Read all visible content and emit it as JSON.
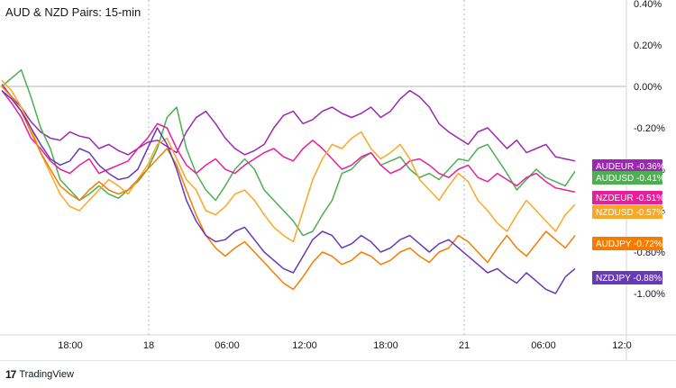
{
  "title": "AUD & NZD Pairs: 15-min",
  "brand": {
    "name": "TradingView",
    "logo_text": "17"
  },
  "chart_data": {
    "type": "line",
    "title": "AUD & NZD Pairs: 15-min",
    "xlabel": "",
    "ylabel": "",
    "ylim": [
      -1.2,
      0.4
    ],
    "grid": true,
    "x_ticks": [
      "18:00",
      "18",
      "06:00",
      "12:00",
      "18:00",
      "21",
      "06:00",
      "12:0"
    ],
    "y_ticks": [
      "0.40%",
      "0.20%",
      "0.00%",
      "-0.20%",
      "-0.40%",
      "-0.60%",
      "-0.80%",
      "-1.00%"
    ],
    "legend_position": "right",
    "series": [
      {
        "name": "AUDEUR",
        "value_label": "-0.36%",
        "color": "#9c27b0",
        "last": -0.36,
        "values": [
          0.01,
          -0.05,
          -0.1,
          -0.17,
          -0.22,
          -0.25,
          -0.26,
          -0.22,
          -0.24,
          -0.25,
          -0.3,
          -0.28,
          -0.31,
          -0.33,
          -0.3,
          -0.27,
          -0.26,
          -0.29,
          -0.32,
          -0.22,
          -0.15,
          -0.12,
          -0.18,
          -0.25,
          -0.3,
          -0.33,
          -0.31,
          -0.28,
          -0.2,
          -0.14,
          -0.12,
          -0.18,
          -0.16,
          -0.12,
          -0.1,
          -0.13,
          -0.15,
          -0.13,
          -0.1,
          -0.15,
          -0.12,
          -0.06,
          -0.02,
          -0.05,
          -0.1,
          -0.18,
          -0.22,
          -0.25,
          -0.28,
          -0.22,
          -0.2,
          -0.25,
          -0.3,
          -0.26,
          -0.32,
          -0.3,
          -0.28,
          -0.34,
          -0.35,
          -0.36
        ]
      },
      {
        "name": "AUDUSD",
        "value_label": "-0.41%",
        "color": "#4caf50",
        "last": -0.41,
        "values": [
          0.0,
          0.04,
          0.08,
          -0.05,
          -0.2,
          -0.3,
          -0.45,
          -0.5,
          -0.55,
          -0.52,
          -0.48,
          -0.52,
          -0.54,
          -0.5,
          -0.46,
          -0.4,
          -0.3,
          -0.15,
          -0.1,
          -0.3,
          -0.42,
          -0.5,
          -0.55,
          -0.48,
          -0.4,
          -0.35,
          -0.4,
          -0.5,
          -0.55,
          -0.6,
          -0.65,
          -0.72,
          -0.7,
          -0.62,
          -0.55,
          -0.42,
          -0.4,
          -0.35,
          -0.32,
          -0.38,
          -0.36,
          -0.34,
          -0.4,
          -0.44,
          -0.42,
          -0.45,
          -0.4,
          -0.35,
          -0.36,
          -0.3,
          -0.28,
          -0.35,
          -0.42,
          -0.5,
          -0.45,
          -0.4,
          -0.44,
          -0.46,
          -0.48,
          -0.41
        ]
      },
      {
        "name": "NZDEUR",
        "value_label": "-0.51%",
        "color": "#e91e9c",
        "last": -0.51,
        "values": [
          -0.02,
          -0.08,
          -0.15,
          -0.25,
          -0.3,
          -0.36,
          -0.4,
          -0.42,
          -0.38,
          -0.35,
          -0.42,
          -0.4,
          -0.38,
          -0.36,
          -0.3,
          -0.25,
          -0.18,
          -0.2,
          -0.3,
          -0.38,
          -0.42,
          -0.38,
          -0.35,
          -0.4,
          -0.42,
          -0.38,
          -0.35,
          -0.32,
          -0.3,
          -0.34,
          -0.36,
          -0.3,
          -0.26,
          -0.3,
          -0.35,
          -0.4,
          -0.38,
          -0.34,
          -0.32,
          -0.38,
          -0.42,
          -0.4,
          -0.36,
          -0.35,
          -0.38,
          -0.42,
          -0.44,
          -0.4,
          -0.38,
          -0.44,
          -0.46,
          -0.42,
          -0.45,
          -0.48,
          -0.44,
          -0.42,
          -0.46,
          -0.49,
          -0.5,
          -0.51
        ]
      },
      {
        "name": "NZDUSD",
        "value_label": "-0.57%",
        "color": "#f9a825",
        "last": -0.57,
        "values": [
          0.03,
          -0.02,
          -0.1,
          -0.2,
          -0.32,
          -0.42,
          -0.52,
          -0.58,
          -0.6,
          -0.55,
          -0.5,
          -0.45,
          -0.48,
          -0.52,
          -0.45,
          -0.38,
          -0.28,
          -0.25,
          -0.35,
          -0.45,
          -0.5,
          -0.6,
          -0.62,
          -0.58,
          -0.52,
          -0.5,
          -0.55,
          -0.62,
          -0.68,
          -0.72,
          -0.75,
          -0.6,
          -0.45,
          -0.35,
          -0.28,
          -0.3,
          -0.25,
          -0.22,
          -0.3,
          -0.35,
          -0.32,
          -0.28,
          -0.35,
          -0.45,
          -0.5,
          -0.55,
          -0.48,
          -0.42,
          -0.46,
          -0.55,
          -0.6,
          -0.66,
          -0.7,
          -0.62,
          -0.55,
          -0.6,
          -0.65,
          -0.7,
          -0.62,
          -0.57
        ]
      },
      {
        "name": "AUDJPY",
        "value_label": "-0.72%",
        "color": "#f57c00",
        "last": -0.72,
        "values": [
          0.0,
          -0.05,
          -0.12,
          -0.22,
          -0.32,
          -0.4,
          -0.48,
          -0.52,
          -0.55,
          -0.5,
          -0.46,
          -0.5,
          -0.52,
          -0.5,
          -0.45,
          -0.4,
          -0.35,
          -0.3,
          -0.38,
          -0.5,
          -0.62,
          -0.72,
          -0.78,
          -0.82,
          -0.78,
          -0.75,
          -0.8,
          -0.85,
          -0.9,
          -0.95,
          -0.98,
          -0.92,
          -0.85,
          -0.8,
          -0.82,
          -0.86,
          -0.84,
          -0.8,
          -0.82,
          -0.86,
          -0.84,
          -0.8,
          -0.78,
          -0.82,
          -0.85,
          -0.8,
          -0.78,
          -0.72,
          -0.75,
          -0.8,
          -0.85,
          -0.78,
          -0.72,
          -0.78,
          -0.82,
          -0.76,
          -0.7,
          -0.74,
          -0.78,
          -0.72
        ]
      },
      {
        "name": "NZDJPY",
        "value_label": "-0.88%",
        "color": "#673ab7",
        "last": -0.88,
        "values": [
          -0.02,
          -0.06,
          -0.12,
          -0.2,
          -0.28,
          -0.35,
          -0.38,
          -0.36,
          -0.3,
          -0.32,
          -0.38,
          -0.42,
          -0.45,
          -0.44,
          -0.4,
          -0.3,
          -0.2,
          -0.28,
          -0.4,
          -0.55,
          -0.65,
          -0.72,
          -0.75,
          -0.74,
          -0.7,
          -0.68,
          -0.74,
          -0.8,
          -0.84,
          -0.88,
          -0.9,
          -0.82,
          -0.74,
          -0.7,
          -0.72,
          -0.78,
          -0.76,
          -0.72,
          -0.75,
          -0.8,
          -0.78,
          -0.74,
          -0.72,
          -0.76,
          -0.8,
          -0.76,
          -0.74,
          -0.78,
          -0.82,
          -0.86,
          -0.9,
          -0.88,
          -0.92,
          -0.95,
          -0.9,
          -0.94,
          -0.98,
          -1.0,
          -0.92,
          -0.88
        ]
      }
    ]
  }
}
